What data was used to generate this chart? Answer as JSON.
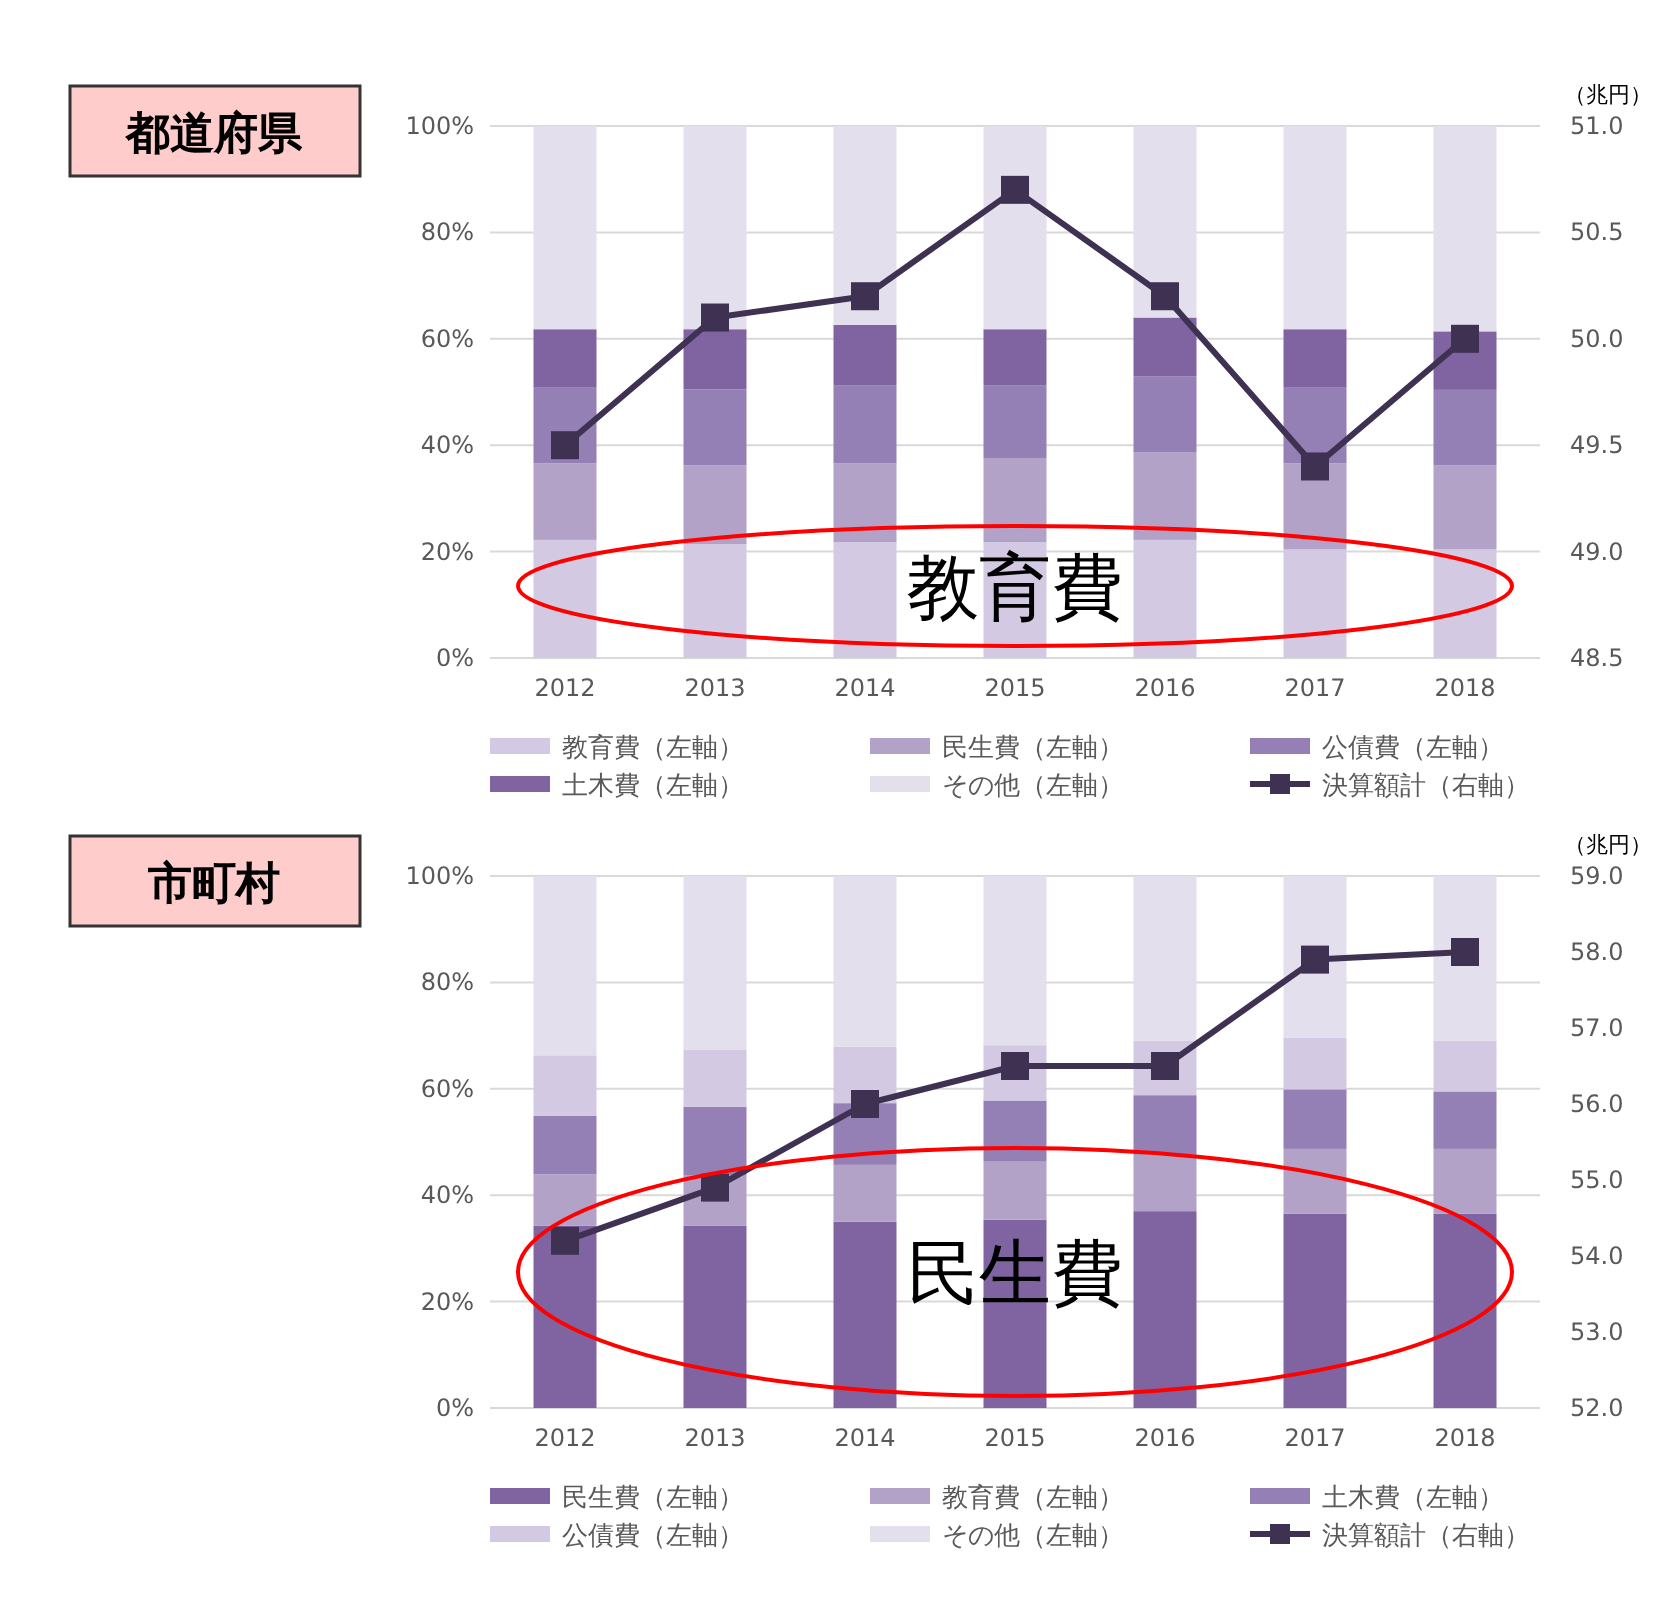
{
  "chart_data": [
    {
      "type": "bar",
      "title": "都道府県",
      "stacked": true,
      "categories": [
        "2012",
        "2013",
        "2014",
        "2015",
        "2016",
        "2017",
        "2018"
      ],
      "series": [
        {
          "name": "教育費（左軸）",
          "color": "#d3c9e3",
          "values": [
            22.2,
            21.4,
            21.8,
            21.8,
            22.2,
            20.4,
            20.4
          ]
        },
        {
          "name": "民生費（左軸）",
          "color": "#b3a2c7",
          "values": [
            14.4,
            14.8,
            14.8,
            15.8,
            16.5,
            16.2,
            15.8
          ]
        },
        {
          "name": "公債費（左軸）",
          "color": "#9580b6",
          "values": [
            14.2,
            14.3,
            14.6,
            13.6,
            14.2,
            14.2,
            14.2
          ]
        },
        {
          "name": "土木費（左軸）",
          "color": "#8064a2",
          "values": [
            11.0,
            11.3,
            11.4,
            10.6,
            11.1,
            11.0,
            11.0
          ]
        },
        {
          "name": "その他（左軸）",
          "color": "#e4dfec",
          "values": [
            38.2,
            38.2,
            37.4,
            38.2,
            36.0,
            38.2,
            38.6
          ]
        },
        {
          "name": "決算額計（右軸）",
          "type": "line",
          "axis": "y2",
          "color": "#3f3151",
          "marker": "square",
          "values": [
            49.5,
            50.1,
            50.2,
            50.7,
            50.2,
            49.4,
            50.0
          ]
        }
      ],
      "ylim": [
        0,
        100
      ],
      "yticks": [
        {
          "value": 0,
          "label": "0%"
        },
        {
          "value": 20,
          "label": "20%"
        },
        {
          "value": 40,
          "label": "40%"
        },
        {
          "value": 60,
          "label": "60%"
        },
        {
          "value": 80,
          "label": "80%"
        },
        {
          "value": 100,
          "label": "100%"
        }
      ],
      "y2label": "（兆円）",
      "y2lim": [
        48.5,
        51.0
      ],
      "y2ticks": [
        {
          "value": 48.5,
          "label": "48.5"
        },
        {
          "value": 49,
          "label": "49.0"
        },
        {
          "value": 49.5,
          "label": "49.5"
        },
        {
          "value": 50,
          "label": "50.0"
        },
        {
          "value": 50.5,
          "label": "50.5"
        },
        {
          "value": 51,
          "label": "51.0"
        }
      ],
      "grid": "y",
      "legend": "bottom",
      "annotations": [
        "教育費"
      ]
    },
    {
      "type": "bar",
      "title": "市町村",
      "stacked": true,
      "categories": [
        "2012",
        "2013",
        "2014",
        "2015",
        "2016",
        "2017",
        "2018"
      ],
      "series": [
        {
          "name": "民生費（左軸）",
          "color": "#8064a2",
          "values": [
            34.3,
            34.3,
            35.0,
            35.4,
            37.0,
            36.5,
            36.5
          ]
        },
        {
          "name": "教育費（左軸）",
          "color": "#b3a2c7",
          "values": [
            9.6,
            9.5,
            10.7,
            10.9,
            10.6,
            12.2,
            12.2
          ]
        },
        {
          "name": "土木費（左軸）",
          "color": "#9580b6",
          "values": [
            11.0,
            12.8,
            11.6,
            11.5,
            11.2,
            11.2,
            10.8
          ]
        },
        {
          "name": "公債費（左軸）",
          "color": "#d3c9e3",
          "values": [
            11.4,
            10.8,
            10.6,
            10.4,
            10.2,
            9.7,
            9.5
          ]
        },
        {
          "name": "その他（左軸）",
          "color": "#e4dfec",
          "values": [
            33.7,
            32.6,
            32.1,
            31.8,
            31.0,
            30.4,
            31.0
          ]
        },
        {
          "name": "決算額計（右軸）",
          "type": "line",
          "axis": "y2",
          "color": "#3f3151",
          "marker": "square",
          "values": [
            54.2,
            54.9,
            56.0,
            56.5,
            56.5,
            57.9,
            58.0
          ]
        }
      ],
      "ylim": [
        0,
        100
      ],
      "yticks": [
        {
          "value": 0,
          "label": "0%"
        },
        {
          "value": 20,
          "label": "20%"
        },
        {
          "value": 40,
          "label": "40%"
        },
        {
          "value": 60,
          "label": "60%"
        },
        {
          "value": 80,
          "label": "80%"
        },
        {
          "value": 100,
          "label": "100%"
        }
      ],
      "y2label": "（兆円）",
      "y2lim": [
        52.0,
        59.0
      ],
      "y2ticks": [
        {
          "value": 52,
          "label": "52.0"
        },
        {
          "value": 53,
          "label": "53.0"
        },
        {
          "value": 54,
          "label": "54.0"
        },
        {
          "value": 55,
          "label": "55.0"
        },
        {
          "value": 56,
          "label": "56.0"
        },
        {
          "value": 57,
          "label": "57.0"
        },
        {
          "value": 58,
          "label": "58.0"
        },
        {
          "value": 59,
          "label": "59.0"
        }
      ],
      "grid": "y",
      "legend": "bottom",
      "annotations": [
        "民生費"
      ]
    }
  ]
}
